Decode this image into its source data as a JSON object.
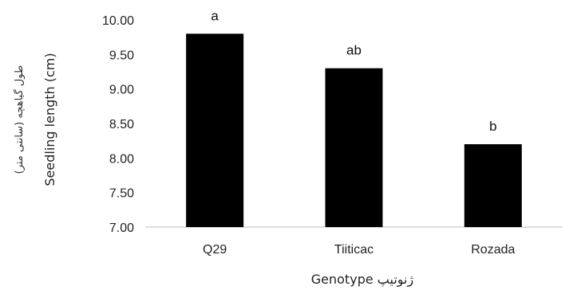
{
  "chart_data": {
    "type": "bar",
    "categories": [
      "Q29",
      "Tiiticac",
      "Rozada"
    ],
    "values": [
      9.8,
      9.3,
      8.2
    ],
    "data_labels": [
      "a",
      "ab",
      "b"
    ],
    "ylim": [
      7.0,
      10.0
    ],
    "yticks": [
      "7.00",
      "7.50",
      "8.00",
      "8.50",
      "9.00",
      "9.50",
      "10.00"
    ],
    "ylabel_en": "Seedling length (cm)",
    "ylabel_fa": "طول گیاهچه (سانتی متر)",
    "xlabel": "Genotype ژنوتیپ",
    "bar_color": "#000000",
    "grid": false,
    "legend": "none"
  }
}
